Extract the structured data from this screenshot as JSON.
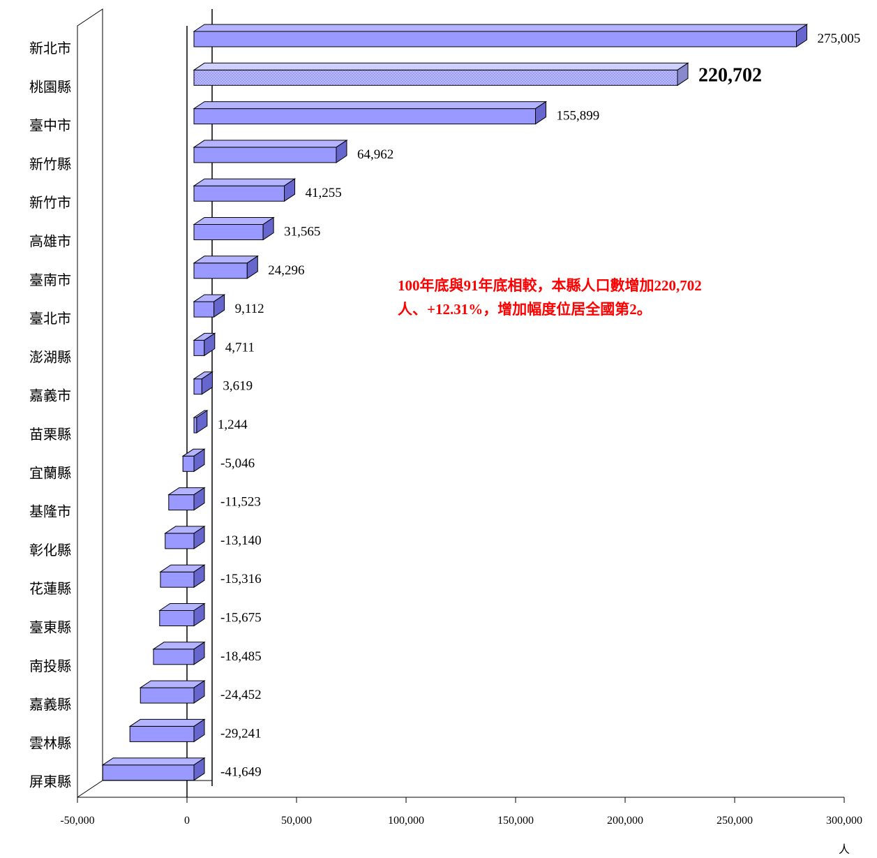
{
  "chart_data": {
    "type": "bar",
    "orientation": "horizontal",
    "categories": [
      "新北市",
      "桃園縣",
      "臺中市",
      "新竹縣",
      "新竹市",
      "高雄市",
      "臺南市",
      "臺北市",
      "澎湖縣",
      "嘉義市",
      "苗栗縣",
      "宜蘭縣",
      "基隆市",
      "彰化縣",
      "花蓮縣",
      "臺東縣",
      "南投縣",
      "嘉義縣",
      "雲林縣",
      "屏東縣"
    ],
    "values": [
      275005,
      220702,
      155899,
      64962,
      41255,
      31565,
      24296,
      9112,
      4711,
      3619,
      1244,
      -5046,
      -11523,
      -13140,
      -15316,
      -15675,
      -18485,
      -24452,
      -29241,
      -41649
    ],
    "value_labels": [
      "275,005",
      "220,702",
      "155,899",
      "64,962",
      "41,255",
      "31,565",
      "24,296",
      "9,112",
      "4,711",
      "3,619",
      "1,244",
      "-5,046",
      "-11,523",
      "-13,140",
      "-15,316",
      "-15,675",
      "-18,485",
      "-24,452",
      "-29,241",
      "-41,649"
    ],
    "highlight_category": "桃園縣",
    "x_ticks": [
      "-50,000",
      "0",
      "50,000",
      "100,000",
      "150,000",
      "200,000",
      "250,000",
      "300,000"
    ],
    "xlim": [
      -50000,
      300000
    ],
    "unit": "人",
    "bar_color": "#9999ff",
    "highlight_color": "#b8b8ff",
    "annotation_lines": [
      "100年底與91年底相較，本縣人口數增加220,702",
      "人、+12.31%，增加幅度位居全國第2。"
    ],
    "annotation_color": "#ff0000"
  }
}
